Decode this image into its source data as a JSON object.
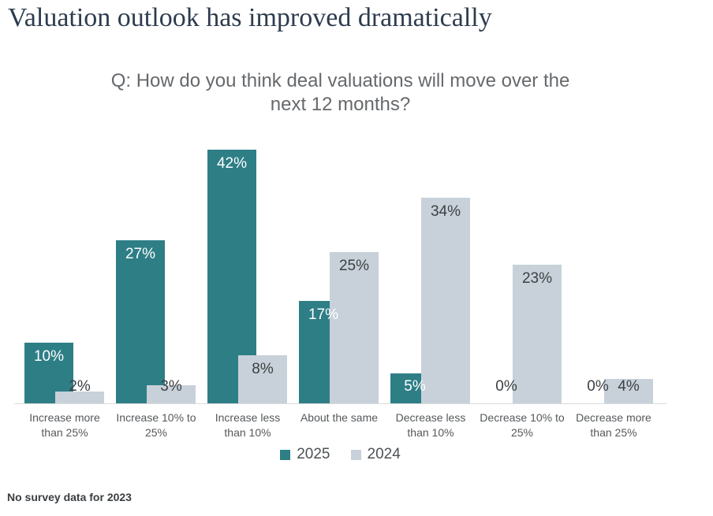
{
  "page": {
    "title": "Valuation outlook has improved dramatically",
    "footnote": "No survey data for 2023"
  },
  "chart_data": {
    "type": "bar",
    "title": "Q: How do you think deal valuations will move over the next 12 months?",
    "title_lines": [
      "Q: How do you think deal valuations will move over the",
      "next 12 months?"
    ],
    "categories": [
      "Increase more than 25%",
      "Increase 10% to 25%",
      "Increase less than 10%",
      "About the same",
      "Decrease less than 10%",
      "Decrease 10% to 25%",
      "Decrease more than 25%"
    ],
    "category_lines": [
      [
        "Increase more",
        "than 25%"
      ],
      [
        "Increase 10% to",
        "25%"
      ],
      [
        "Increase less",
        "than 10%"
      ],
      [
        "About the same"
      ],
      [
        "Decrease less",
        "than 10%"
      ],
      [
        "Decrease 10% to",
        "25%"
      ],
      [
        "Decrease more",
        "than 25%"
      ]
    ],
    "series": [
      {
        "name": "2025",
        "color": "#2e7e86",
        "values": [
          10,
          27,
          42,
          17,
          5,
          0,
          0
        ]
      },
      {
        "name": "2024",
        "color": "#c8d1d9",
        "values": [
          2,
          3,
          8,
          25,
          34,
          23,
          4
        ]
      }
    ],
    "value_suffix": "%",
    "ylim": [
      0,
      45
    ],
    "grid": false,
    "legend_position": "bottom"
  },
  "colors": {
    "value_label_light": "#ffffff",
    "value_label_dark": "#3c4043",
    "axis_line": "#d9dadb"
  }
}
